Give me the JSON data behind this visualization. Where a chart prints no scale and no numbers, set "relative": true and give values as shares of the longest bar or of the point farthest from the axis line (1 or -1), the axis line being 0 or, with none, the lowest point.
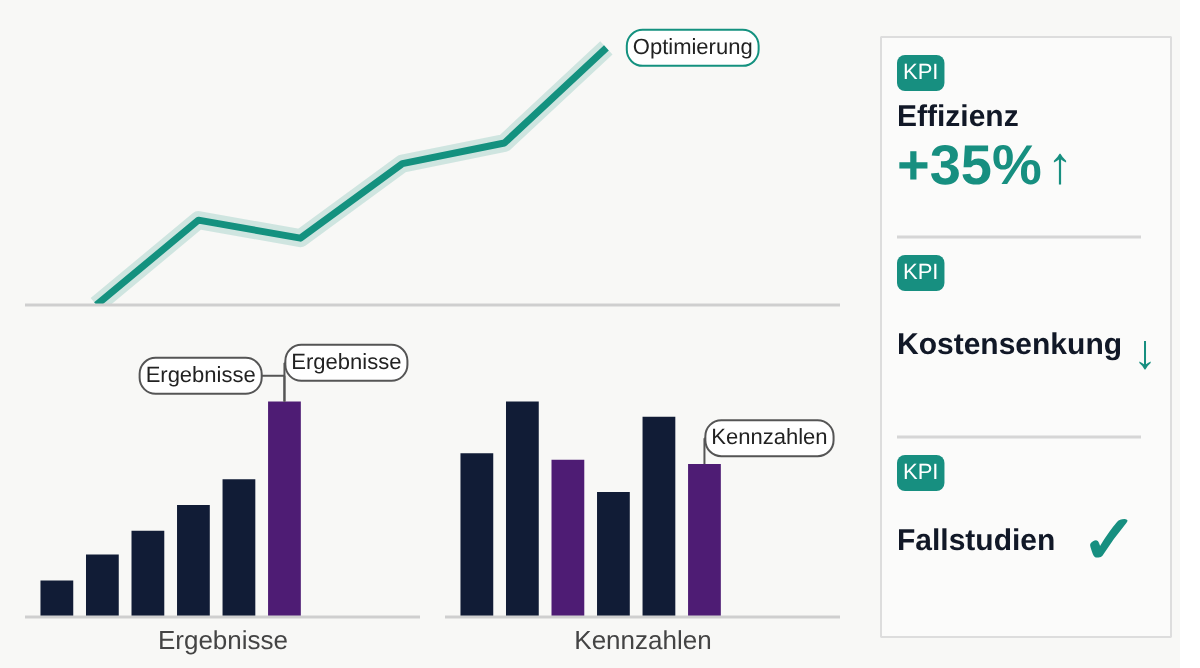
{
  "chart_data": [
    {
      "type": "line",
      "relative": true,
      "categories": [
        null,
        null,
        null,
        null,
        null,
        null
      ],
      "series": [
        {
          "color": "#14917f",
          "values": [
            0,
            0.33,
            0.26,
            0.55,
            0.63,
            1
          ]
        }
      ],
      "annotations": [
        "Optimierung"
      ]
    },
    {
      "type": "bar",
      "relative": true,
      "xlabel": "Ergebnisse",
      "categories": [
        null,
        null,
        null,
        null,
        null,
        null
      ],
      "values": [
        0.17,
        0.29,
        0.4,
        0.52,
        0.64,
        1
      ],
      "colors": [
        "#111c36",
        "#111c36",
        "#111c36",
        "#111c36",
        "#111c36",
        "#4e1c74"
      ],
      "annotations": [
        "Ergebnisse",
        "Ergebnisse"
      ]
    },
    {
      "type": "bar",
      "relative": true,
      "xlabel": "Kennzahlen",
      "categories": [
        null,
        null,
        null,
        null,
        null,
        null
      ],
      "values": [
        0.76,
        1,
        0.73,
        0.58,
        0.93,
        0.71
      ],
      "colors": [
        "#111c36",
        "#111c36",
        "#4e1c74",
        "#111c36",
        "#111c36",
        "#4e1c74"
      ],
      "annotations": [
        "Kennzahlen"
      ]
    },
    {
      "type": "other",
      "annotations": [
        "KPI",
        "Effizienz",
        "+35%",
        "↑",
        "KPI",
        "Kostensenkung",
        "↓",
        "KPI",
        "Fallstudien",
        "✓"
      ]
    }
  ]
}
